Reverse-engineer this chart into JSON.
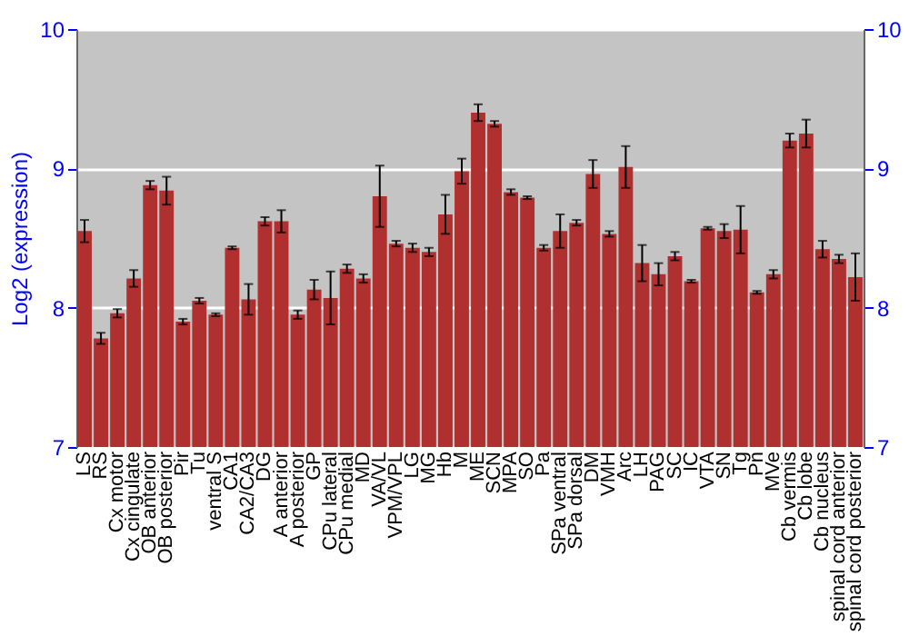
{
  "chart_data": {
    "type": "bar",
    "ylabel": "Log2 (expression)",
    "categories": [
      "LS",
      "RS",
      "Cx motor",
      "Cx cingulate",
      "OB anterior",
      "OB posterior",
      "Pir",
      "Tu",
      "ventral S",
      "CA1",
      "CA2/CA3",
      "DG",
      "A anterior",
      "A posterior",
      "GP",
      "CPu lateral",
      "CPu medial",
      "MD",
      "VA/VL",
      "VPM/VPL",
      "LG",
      "MG",
      "Hb",
      "M",
      "ME",
      "SCN",
      "MPA",
      "SO",
      "Pa",
      "SPa ventral",
      "SPa dorsal",
      "DM",
      "VMH",
      "Arc",
      "LH",
      "PAG",
      "SC",
      "IC",
      "VTA",
      "SN",
      "Tg",
      "Pn",
      "MVe",
      "Cb vermis",
      "Cb lobe",
      "Cb nucleus",
      "spinal cord anterior",
      "spinal cord posterior"
    ],
    "values": [
      8.55,
      7.78,
      7.96,
      8.21,
      8.88,
      8.84,
      7.9,
      8.05,
      7.95,
      8.43,
      8.06,
      8.62,
      8.62,
      7.95,
      8.13,
      8.07,
      8.28,
      8.21,
      8.8,
      8.46,
      8.43,
      8.4,
      8.67,
      8.98,
      9.4,
      9.32,
      8.83,
      8.79,
      8.43,
      8.55,
      8.61,
      8.96,
      8.53,
      9.01,
      8.32,
      8.24,
      8.37,
      8.19,
      8.57,
      8.55,
      8.56,
      8.11,
      8.24,
      9.2,
      9.25,
      8.42,
      8.35,
      8.22
    ],
    "errors": [
      0.08,
      0.04,
      0.03,
      0.06,
      0.03,
      0.1,
      0.02,
      0.02,
      0.01,
      0.01,
      0.11,
      0.03,
      0.08,
      0.03,
      0.07,
      0.19,
      0.03,
      0.03,
      0.22,
      0.02,
      0.03,
      0.03,
      0.14,
      0.09,
      0.06,
      0.02,
      0.02,
      0.01,
      0.02,
      0.12,
      0.02,
      0.1,
      0.02,
      0.15,
      0.13,
      0.08,
      0.03,
      0.01,
      0.01,
      0.05,
      0.17,
      0.01,
      0.03,
      0.05,
      0.1,
      0.06,
      0.03,
      0.17
    ],
    "color": "#b03030",
    "ylim": [
      7,
      10
    ],
    "yticks": [
      7,
      8,
      9,
      10
    ],
    "y2lim": [
      7,
      10
    ],
    "y2ticks": [
      7,
      8,
      9,
      10
    ],
    "grid": "y"
  }
}
